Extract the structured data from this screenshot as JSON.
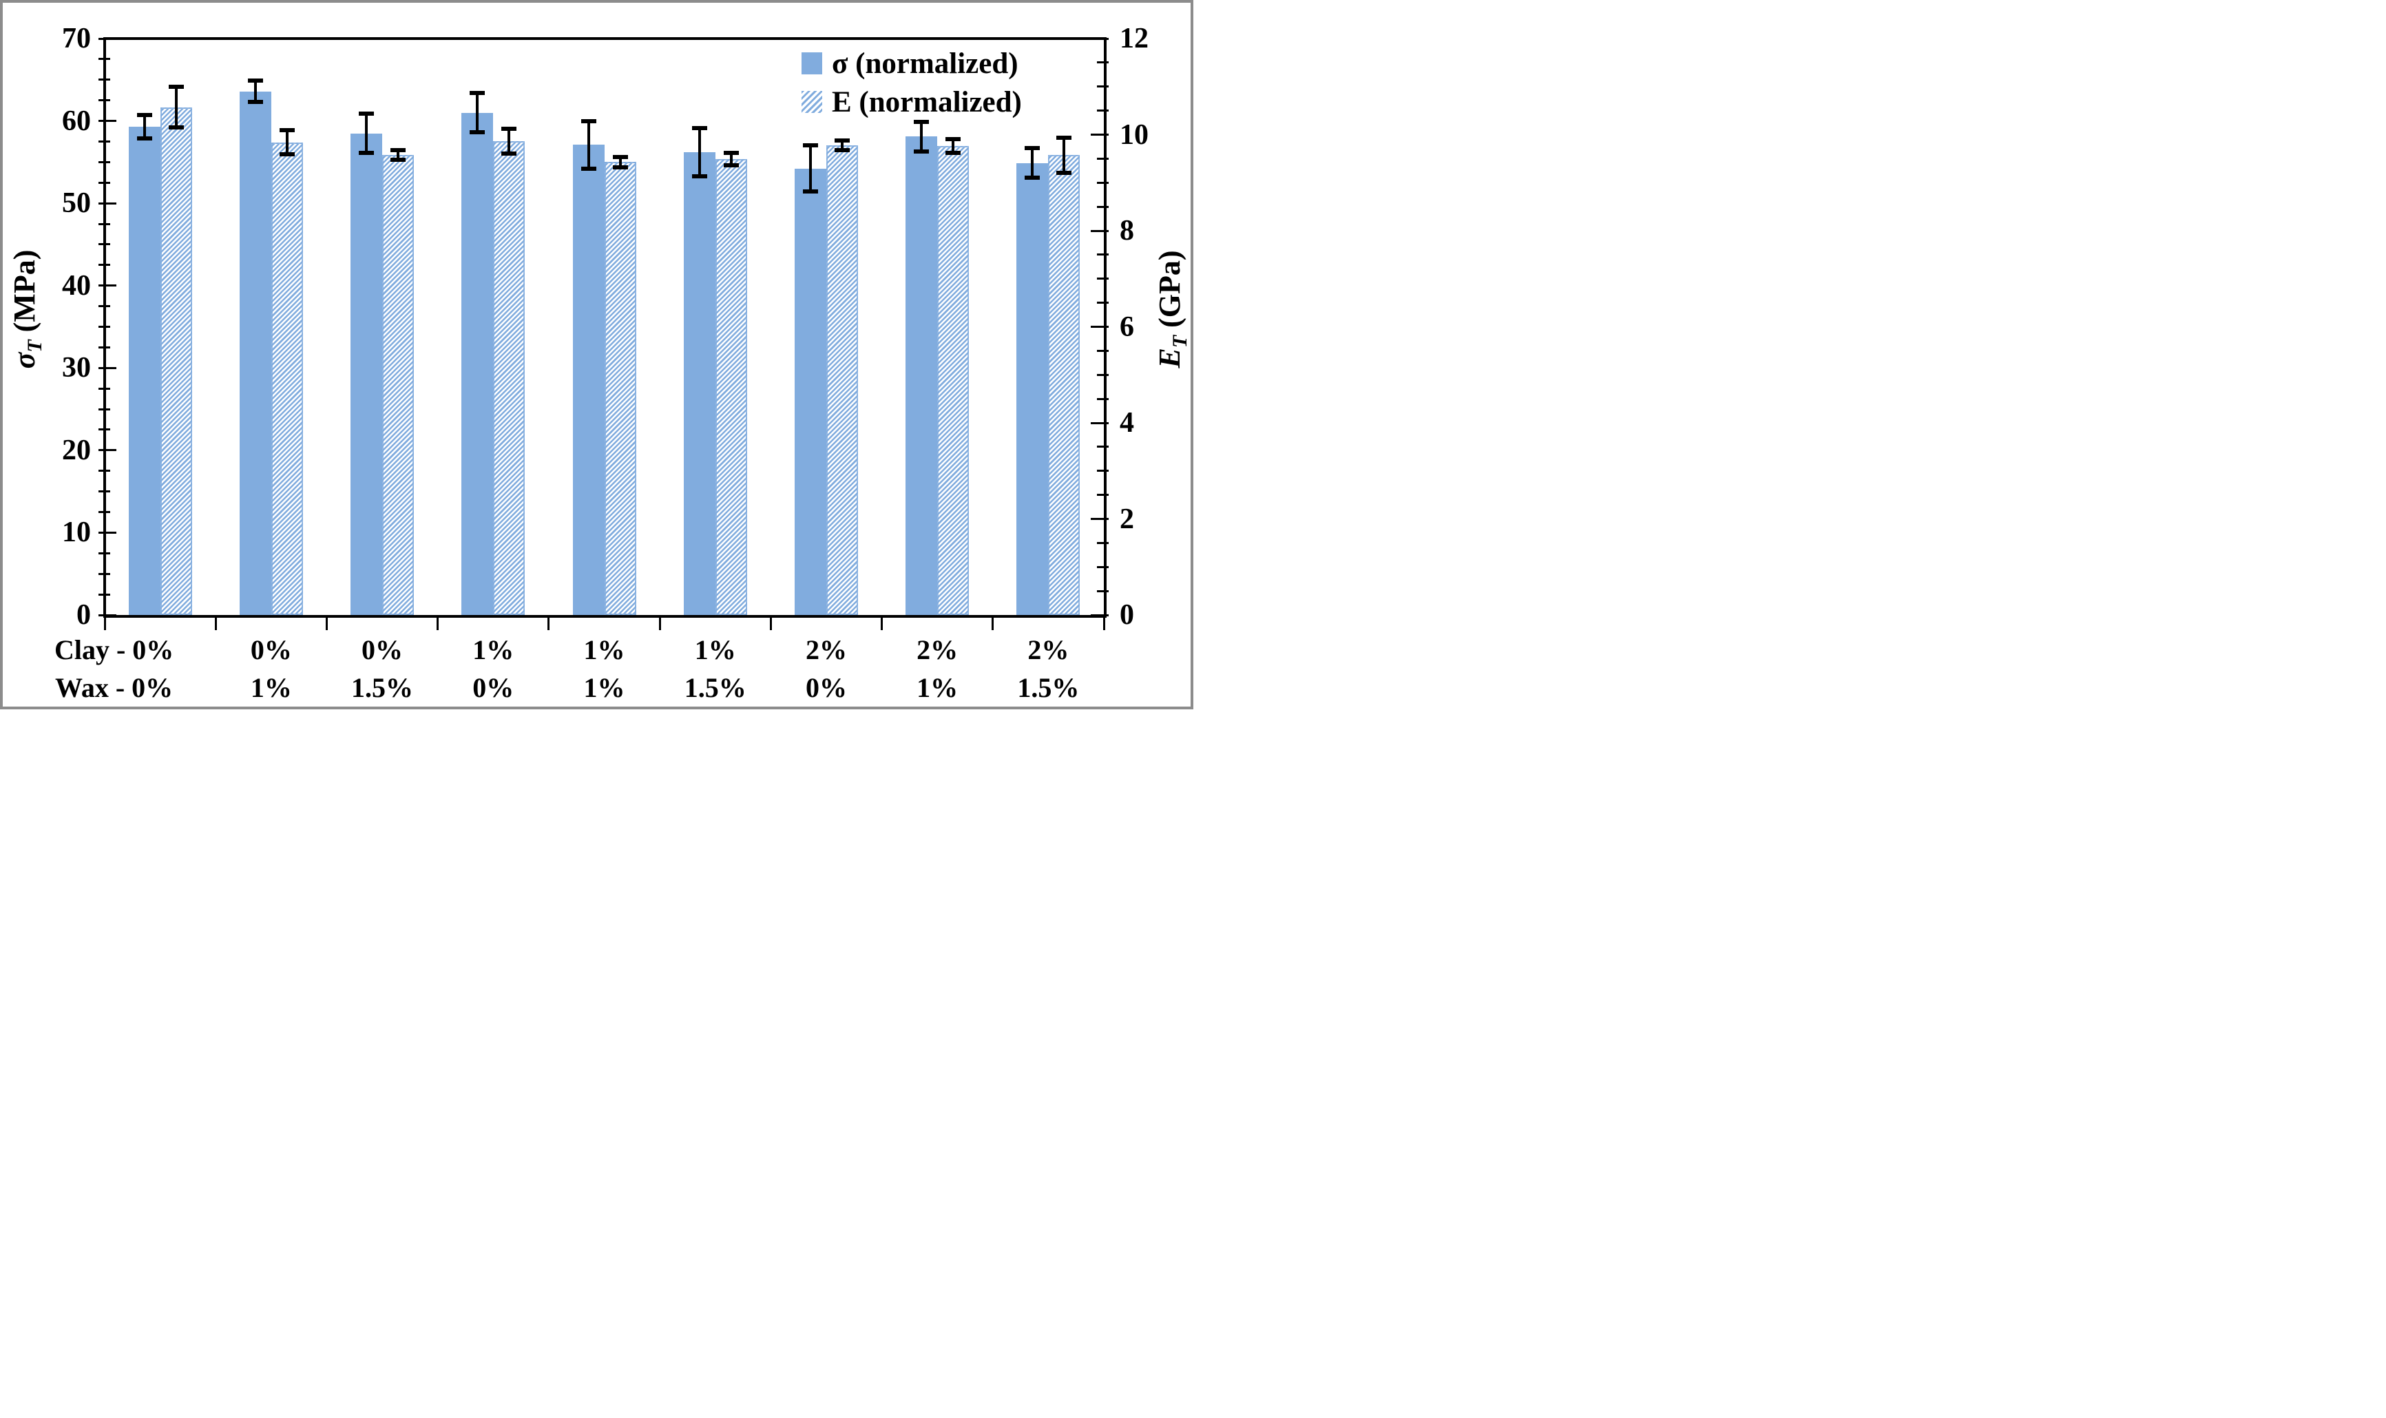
{
  "figure": {
    "kind": "dual-axis grouped bar chart",
    "background": "#ffffff",
    "outer_border_color": "#8C8C8C"
  },
  "legend": {
    "position": "top-right-inside",
    "items": [
      {
        "label": "σ (normalized)",
        "swatch": "solid-blue-square-icon"
      },
      {
        "label": "E (normalized)",
        "swatch": "hatched-blue-square-icon"
      }
    ]
  },
  "chart_data": {
    "type": "bar",
    "title": "",
    "grid": false,
    "colors": {
      "bar_blue": "#81ACDE",
      "error_bar": "#000000",
      "axis": "#000000"
    },
    "left_axis": {
      "symbol": "σ",
      "symbol_sub": "T",
      "unit_label": "(MPa)",
      "label_text": "σT (MPa)",
      "min": 0,
      "max": 70,
      "major_step": 10,
      "minor_step": 2.5,
      "tick_labels": [
        "0",
        "10",
        "20",
        "30",
        "40",
        "50",
        "60",
        "70"
      ]
    },
    "right_axis": {
      "symbol": "E",
      "symbol_sub": "T",
      "unit_label": "(GPa)",
      "label_text": "ET (GPa)",
      "min": 0,
      "max": 12,
      "major_step": 2,
      "minor_step": 0.5,
      "tick_labels": [
        "0",
        "2",
        "4",
        "6",
        "8",
        "10",
        "12"
      ]
    },
    "x_axis": {
      "row1_prefix": "Clay - ",
      "row2_prefix": "Wax - "
    },
    "categories": [
      {
        "clay": "0%",
        "wax": "0%"
      },
      {
        "clay": "0%",
        "wax": "1%"
      },
      {
        "clay": "0%",
        "wax": "1.5%"
      },
      {
        "clay": "1%",
        "wax": "0%"
      },
      {
        "clay": "1%",
        "wax": "1%"
      },
      {
        "clay": "1%",
        "wax": "1.5%"
      },
      {
        "clay": "2%",
        "wax": "0%"
      },
      {
        "clay": "2%",
        "wax": "1%"
      },
      {
        "clay": "2%",
        "wax": "1.5%"
      }
    ],
    "series": [
      {
        "name": "σ (normalized)",
        "axis": "left",
        "unit": "MPa",
        "style": "solid",
        "values": [
          59.3,
          63.6,
          58.5,
          61.0,
          57.1,
          56.2,
          54.2,
          58.1,
          54.9
        ],
        "errors": [
          1.4,
          1.3,
          2.4,
          2.4,
          2.9,
          2.9,
          2.8,
          1.8,
          1.8
        ]
      },
      {
        "name": "E (normalized)",
        "axis": "right",
        "unit": "GPa",
        "style": "hatched",
        "values": [
          10.57,
          9.84,
          9.58,
          9.86,
          9.43,
          9.49,
          9.78,
          9.76,
          9.57
        ],
        "errors": [
          0.42,
          0.25,
          0.1,
          0.26,
          0.11,
          0.13,
          0.1,
          0.14,
          0.36
        ]
      }
    ]
  }
}
